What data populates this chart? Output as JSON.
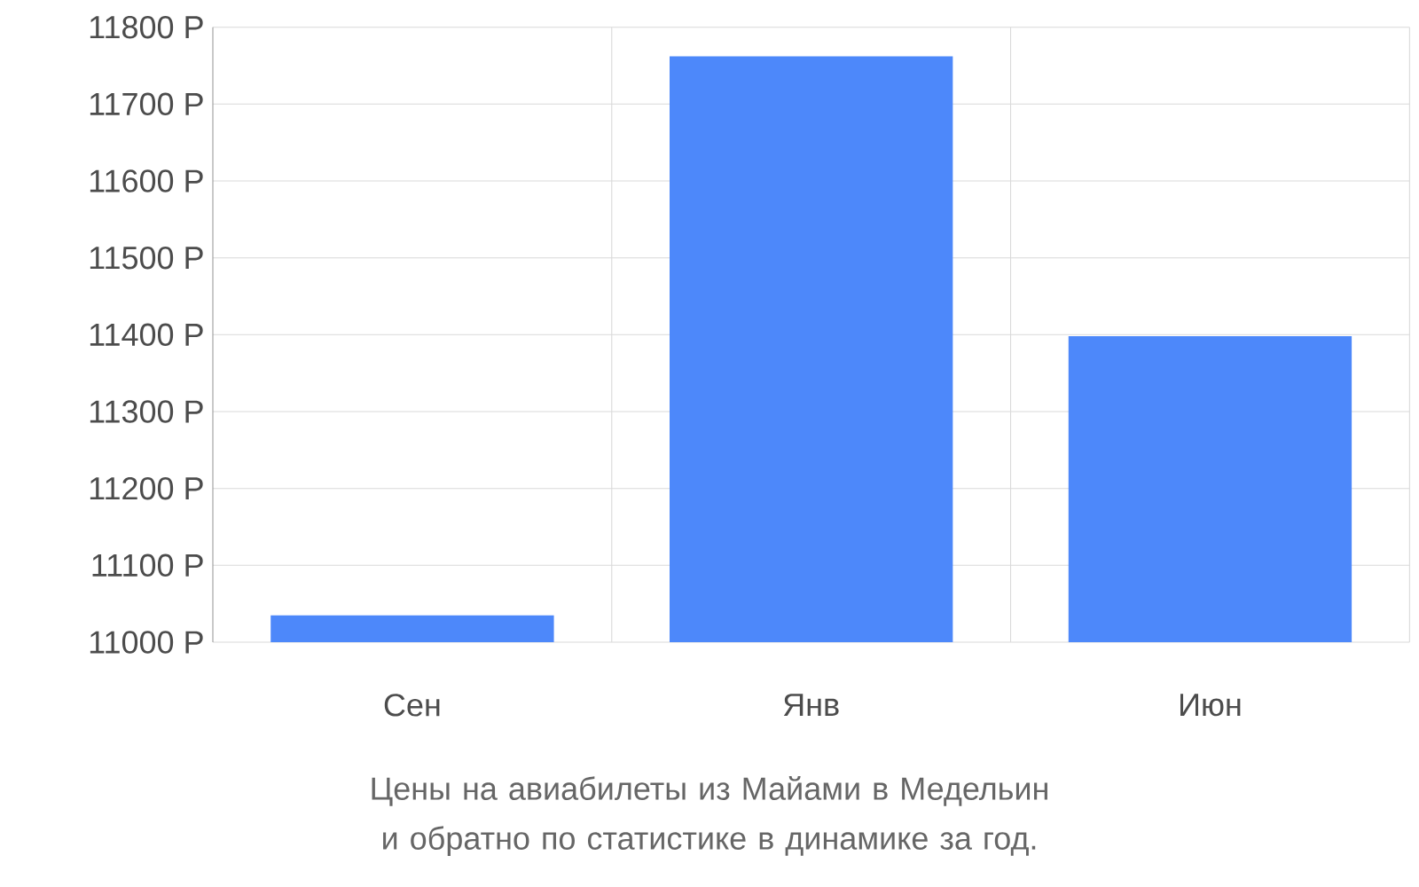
{
  "chart_data": {
    "type": "bar",
    "title": "Цены на авиабилеты из Майами в Медельин и обратно по статистике в динамике за год.",
    "categories": [
      "Сен",
      "Янв",
      "Июн"
    ],
    "values": [
      11035,
      11762,
      11398
    ],
    "color": "#4d88fa",
    "ylim": [
      11000,
      11800
    ],
    "yticks": [
      {
        "value": 11000,
        "label": "11000 Р"
      },
      {
        "value": 11100,
        "label": "11100 Р"
      },
      {
        "value": 11200,
        "label": "11200 Р"
      },
      {
        "value": 11300,
        "label": "11300 Р"
      },
      {
        "value": 11400,
        "label": "11400 Р"
      },
      {
        "value": 11500,
        "label": "11500 Р"
      },
      {
        "value": 11600,
        "label": "11600 Р"
      },
      {
        "value": 11700,
        "label": "11700 Р"
      },
      {
        "value": 11800,
        "label": "11800 Р"
      }
    ],
    "grid": true
  }
}
